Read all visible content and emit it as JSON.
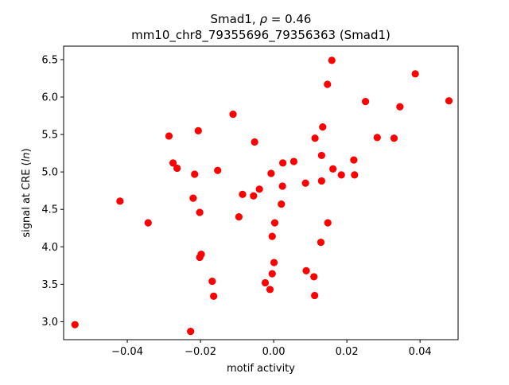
{
  "chart_data": {
    "type": "scatter",
    "title_line1_prefix": "Smad1, ",
    "title_line1_rho": "ρ",
    "title_line1_suffix": " = 0.46",
    "title_line2": "mm10_chr8_79355696_79356363 (Smad1)",
    "xlabel": "motif activity",
    "ylabel_prefix": "signal at CRE (",
    "ylabel_ln": "ln",
    "ylabel_suffix": ")",
    "xlim": [
      -0.0574,
      0.0504
    ],
    "ylim": [
      2.76,
      6.68
    ],
    "xticks": [
      -0.04,
      -0.02,
      0.0,
      0.02,
      0.04
    ],
    "xtick_labels": [
      "−0.04",
      "−0.02",
      "0.00",
      "0.02",
      "0.04"
    ],
    "yticks": [
      3.0,
      3.5,
      4.0,
      4.5,
      5.0,
      5.5,
      6.0,
      6.5
    ],
    "ytick_labels": [
      "3.0",
      "3.5",
      "4.0",
      "4.5",
      "5.0",
      "5.5",
      "6.0",
      "6.5"
    ],
    "grid": false,
    "marker_color": "#ff0000",
    "points": [
      {
        "x": -0.0543,
        "y": 2.96
      },
      {
        "x": -0.042,
        "y": 4.61
      },
      {
        "x": -0.0343,
        "y": 4.32
      },
      {
        "x": -0.0286,
        "y": 5.48
      },
      {
        "x": -0.0275,
        "y": 5.12
      },
      {
        "x": -0.0264,
        "y": 5.05
      },
      {
        "x": -0.0227,
        "y": 2.87
      },
      {
        "x": -0.022,
        "y": 4.65
      },
      {
        "x": -0.0216,
        "y": 4.97
      },
      {
        "x": -0.0206,
        "y": 5.55
      },
      {
        "x": -0.0202,
        "y": 4.46
      },
      {
        "x": -0.0202,
        "y": 3.86
      },
      {
        "x": -0.0198,
        "y": 3.9
      },
      {
        "x": -0.0168,
        "y": 3.54
      },
      {
        "x": -0.0164,
        "y": 3.34
      },
      {
        "x": -0.0153,
        "y": 5.02
      },
      {
        "x": -0.0111,
        "y": 5.77
      },
      {
        "x": -0.0095,
        "y": 4.4
      },
      {
        "x": -0.0085,
        "y": 4.7
      },
      {
        "x": -0.0055,
        "y": 4.68
      },
      {
        "x": -0.0052,
        "y": 5.4
      },
      {
        "x": -0.0039,
        "y": 4.77
      },
      {
        "x": -0.0023,
        "y": 3.52
      },
      {
        "x": -0.001,
        "y": 3.43
      },
      {
        "x": -0.0007,
        "y": 4.98
      },
      {
        "x": -0.0004,
        "y": 3.64
      },
      {
        "x": -0.0004,
        "y": 4.14
      },
      {
        "x": 0.0001,
        "y": 3.79
      },
      {
        "x": 0.0003,
        "y": 4.32
      },
      {
        "x": 0.0021,
        "y": 4.57
      },
      {
        "x": 0.0024,
        "y": 4.81
      },
      {
        "x": 0.0025,
        "y": 5.12
      },
      {
        "x": 0.0055,
        "y": 5.14
      },
      {
        "x": 0.0087,
        "y": 4.85
      },
      {
        "x": 0.0089,
        "y": 3.68
      },
      {
        "x": 0.011,
        "y": 3.6
      },
      {
        "x": 0.0112,
        "y": 3.35
      },
      {
        "x": 0.0113,
        "y": 5.45
      },
      {
        "x": 0.0129,
        "y": 4.06
      },
      {
        "x": 0.0131,
        "y": 5.22
      },
      {
        "x": 0.0131,
        "y": 4.88
      },
      {
        "x": 0.0134,
        "y": 5.6
      },
      {
        "x": 0.0147,
        "y": 6.17
      },
      {
        "x": 0.0148,
        "y": 4.32
      },
      {
        "x": 0.0159,
        "y": 6.49
      },
      {
        "x": 0.0162,
        "y": 5.04
      },
      {
        "x": 0.0185,
        "y": 4.96
      },
      {
        "x": 0.0219,
        "y": 5.16
      },
      {
        "x": 0.0221,
        "y": 4.96
      },
      {
        "x": 0.0251,
        "y": 5.94
      },
      {
        "x": 0.0283,
        "y": 5.46
      },
      {
        "x": 0.0329,
        "y": 5.45
      },
      {
        "x": 0.0345,
        "y": 5.87
      },
      {
        "x": 0.0387,
        "y": 6.31
      },
      {
        "x": 0.0479,
        "y": 5.95
      }
    ]
  }
}
